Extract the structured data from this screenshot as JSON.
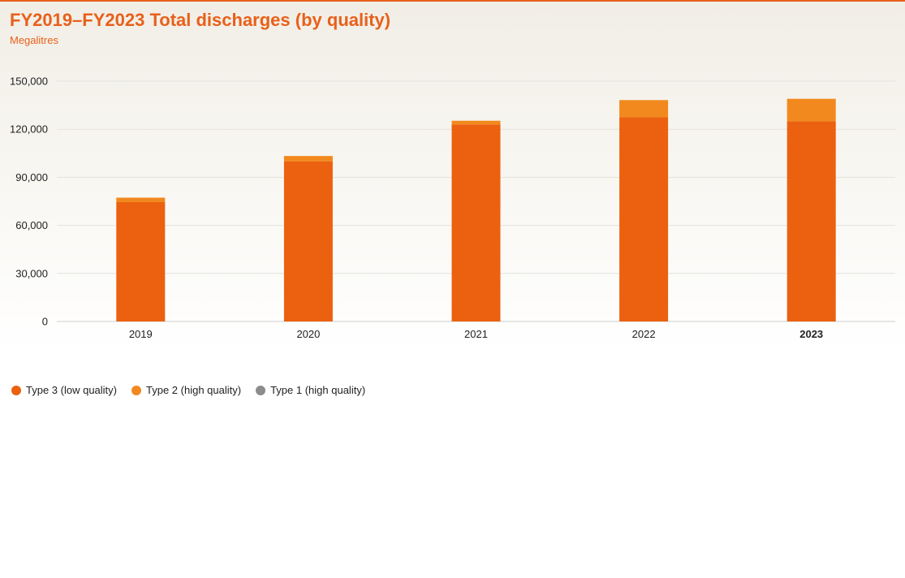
{
  "chart_data": {
    "type": "bar",
    "stacked": true,
    "title": "FY2019–FY2023 Total discharges (by quality)",
    "subtitle": "Megalitres",
    "categories": [
      "2019",
      "2020",
      "2021",
      "2022",
      "2023"
    ],
    "highlight_category": "2023",
    "ylim": [
      0,
      150000
    ],
    "yticks": [
      0,
      30000,
      60000,
      90000,
      120000,
      150000
    ],
    "ytick_labels": [
      "0",
      "30,000",
      "60,000",
      "90,000",
      "120,000",
      "150,000"
    ],
    "grid": true,
    "legend_position": "bottom-left",
    "series": [
      {
        "name": "Type 3 (low quality)",
        "color": "#eb610f",
        "values": [
          74500,
          100000,
          123000,
          127500,
          125000
        ]
      },
      {
        "name": "Type 2 (high quality)",
        "color": "#f2891e",
        "values": [
          2800,
          3300,
          2300,
          10700,
          14000
        ]
      },
      {
        "name": "Type 1 (high quality)",
        "color": "#8c8c8c",
        "values": [
          0,
          0,
          0,
          0,
          0
        ]
      }
    ]
  }
}
